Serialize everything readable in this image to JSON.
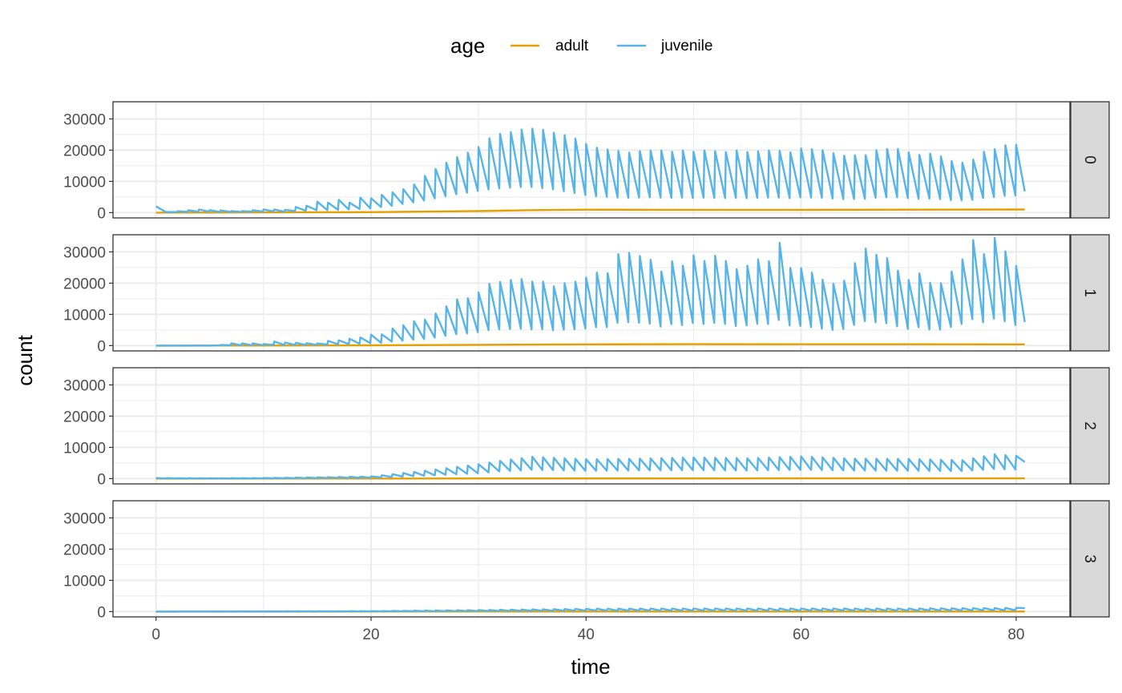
{
  "chart_data": {
    "type": "line",
    "title": "",
    "xlabel": "time",
    "ylabel": "count",
    "xlim": [
      -4,
      85
    ],
    "ylim": [
      -1700,
      35500
    ],
    "x_ticks": [
      0,
      20,
      40,
      60,
      80
    ],
    "x_tick_labels": [
      "0",
      "20",
      "40",
      "60",
      "80"
    ],
    "y_ticks": [
      0,
      10000,
      20000,
      30000
    ],
    "y_tick_labels": [
      "0",
      "10000",
      "20000",
      "30000"
    ],
    "grid": true,
    "legend": {
      "title": "age",
      "position": "top",
      "entries": [
        {
          "label": "adult",
          "color": "#E69F00"
        },
        {
          "label": "juvenile",
          "color": "#56B4E9"
        }
      ]
    },
    "facet_strip_position": "right",
    "panels": [
      {
        "label": "0",
        "series": [
          {
            "name": "adult",
            "color": "#E69F00",
            "t": [
              0,
              20,
              30,
              35,
              40,
              50,
              60,
              70,
              80.8
            ],
            "y": [
              0,
              150,
              500,
              800,
              950,
              900,
              900,
              950,
              1000
            ]
          },
          {
            "name": "juvenile",
            "color": "#56B4E9",
            "t": [
              0,
              0.5,
              1,
              4,
              5,
              6,
              7,
              8,
              9,
              10,
              11,
              12,
              13,
              14,
              15,
              16,
              17,
              18,
              19,
              20,
              21,
              22,
              23,
              24,
              25,
              26,
              27,
              28,
              29,
              30,
              31,
              32,
              33,
              34,
              35,
              36,
              37,
              38,
              39,
              40,
              41,
              42,
              43,
              44,
              45,
              46,
              47,
              48,
              49,
              50,
              51,
              52,
              53,
              54,
              55,
              56,
              57,
              58,
              59,
              60,
              61,
              62,
              63,
              64,
              65,
              66,
              67,
              68,
              69,
              70,
              71,
              72,
              73,
              74,
              75,
              76,
              77,
              78,
              79,
              80,
              80.8
            ],
            "peaks": [
              2000,
              1000,
              200,
              1000,
              800,
              700,
              500,
              500,
              800,
              1000,
              1000,
              900,
              1800,
              2200,
              3500,
              3200,
              4100,
              3200,
              4800,
              4600,
              5700,
              6500,
              7500,
              9000,
              11800,
              14000,
              16000,
              17800,
              19200,
              21000,
              23800,
              25200,
              25800,
              26600,
              26900,
              26500,
              25600,
              24800,
              23700,
              22000,
              20800,
              20200,
              19800,
              19200,
              19700,
              19900,
              19900,
              19500,
              19900,
              19500,
              19900,
              19700,
              19400,
              19900,
              19400,
              19600,
              19900,
              19800,
              19300,
              20500,
              20300,
              20000,
              19000,
              18200,
              18400,
              18400,
              20000,
              20400,
              20400,
              19300,
              18500,
              18900,
              18000,
              16500,
              16000,
              17000,
              19500,
              20300,
              21600,
              21700,
              21700
            ],
            "troughs": [
              1200,
              600,
              100,
              300,
              300,
              200,
              200,
              200,
              300,
              300,
              400,
              300,
              500,
              600,
              800,
              800,
              900,
              1000,
              1200,
              1400,
              1800,
              2200,
              2800,
              3300,
              3900,
              4600,
              5300,
              5900,
              6400,
              7000,
              7400,
              7800,
              8000,
              8200,
              8200,
              7800,
              7400,
              6800,
              6200,
              5600,
              5200,
              5000,
              4800,
              4700,
              4800,
              4900,
              4800,
              4700,
              4800,
              4700,
              4800,
              4700,
              4600,
              4700,
              4600,
              4700,
              4800,
              4800,
              4600,
              4900,
              4800,
              4700,
              4500,
              4300,
              4400,
              4400,
              4800,
              4900,
              4900,
              4600,
              4400,
              4500,
              4300,
              4000,
              3900,
              4100,
              4700,
              5000,
              5400,
              5500,
              6800
            ]
          }
        ]
      },
      {
        "label": "1",
        "series": [
          {
            "name": "adult",
            "color": "#E69F00",
            "t": [
              0,
              10,
              20,
              30,
              40,
              50,
              60,
              70,
              80.8
            ],
            "y": [
              0,
              20,
              100,
              250,
              400,
              450,
              420,
              420,
              400
            ]
          },
          {
            "name": "juvenile",
            "color": "#56B4E9",
            "t": [
              0,
              5,
              6,
              7,
              8,
              9,
              10,
              11,
              12,
              13,
              14,
              15,
              16,
              17,
              18,
              19,
              20,
              21,
              22,
              23,
              24,
              25,
              26,
              27,
              28,
              29,
              30,
              31,
              32,
              33,
              34,
              35,
              36,
              37,
              38,
              39,
              40,
              41,
              42,
              43,
              44,
              45,
              46,
              47,
              48,
              49,
              50,
              51,
              52,
              53,
              54,
              55,
              56,
              57,
              58,
              59,
              60,
              61,
              62,
              63,
              64,
              65,
              66,
              67,
              68,
              69,
              70,
              71,
              72,
              73,
              74,
              75,
              76,
              77,
              78,
              79,
              80,
              80.8
            ],
            "peaks": [
              0,
              0,
              200,
              700,
              700,
              700,
              500,
              1300,
              1000,
              900,
              800,
              700,
              1500,
              1700,
              2200,
              2600,
              3500,
              3600,
              5500,
              6500,
              7800,
              8300,
              10300,
              12600,
              14800,
              15200,
              17000,
              19800,
              20400,
              21000,
              21300,
              20500,
              20500,
              19000,
              20000,
              20500,
              21800,
              23400,
              23200,
              29300,
              29700,
              28700,
              27500,
              23700,
              27000,
              25600,
              28900,
              27100,
              28800,
              27100,
              24500,
              25600,
              27600,
              27000,
              32900,
              24900,
              24800,
              23400,
              21100,
              19800,
              20800,
              26400,
              31100,
              29100,
              28000,
              24000,
              21000,
              23100,
              20100,
              20000,
              23700,
              27600,
              33800,
              29300,
              34500,
              30200,
              25500,
              25500
            ],
            "troughs": [
              0,
              0,
              50,
              100,
              100,
              100,
              100,
              200,
              200,
              200,
              200,
              200,
              300,
              400,
              500,
              600,
              800,
              900,
              1300,
              1600,
              1900,
              2100,
              2600,
              3200,
              3700,
              3900,
              4300,
              5000,
              5200,
              5300,
              5400,
              5200,
              5200,
              4900,
              5100,
              5200,
              5500,
              5900,
              5900,
              7400,
              7500,
              7300,
              7000,
              6000,
              6900,
              6500,
              7300,
              6900,
              7300,
              6900,
              6200,
              6500,
              7000,
              6900,
              8300,
              6300,
              6300,
              5900,
              5400,
              5000,
              5300,
              6700,
              7900,
              7400,
              7100,
              6100,
              5300,
              5900,
              5100,
              5100,
              6000,
              7000,
              8600,
              7400,
              8700,
              7700,
              6500,
              7500
            ]
          }
        ]
      },
      {
        "label": "2",
        "series": [
          {
            "name": "adult",
            "color": "#E69F00",
            "t": [
              0,
              20,
              40,
              60,
              80.8
            ],
            "y": [
              0,
              20,
              50,
              60,
              60
            ]
          },
          {
            "name": "juvenile",
            "color": "#56B4E9",
            "t": [
              0,
              5,
              10,
              15,
              20,
              25,
              30,
              32,
              35,
              40,
              45,
              50,
              55,
              60,
              65,
              70,
              75,
              78,
              80,
              80.8
            ],
            "peaks": [
              200,
              100,
              200,
              400,
              700,
              2500,
              4600,
              5700,
              7000,
              6200,
              6400,
              6800,
              6500,
              7100,
              6400,
              6300,
              5900,
              7800,
              7300,
              5300
            ],
            "troughs": [
              50,
              50,
              50,
              150,
              250,
              900,
              1700,
              2300,
              2800,
              2500,
              2600,
              2700,
              2600,
              2800,
              2600,
              2500,
              2400,
              3100,
              2900,
              5300
            ]
          }
        ]
      },
      {
        "label": "3",
        "series": [
          {
            "name": "adult",
            "color": "#E69F00",
            "t": [
              0,
              40,
              80.8
            ],
            "y": [
              0,
              10,
              20
            ]
          },
          {
            "name": "juvenile",
            "color": "#56B4E9",
            "t": [
              0,
              20,
              30,
              40,
              50,
              60,
              70,
              80,
              80.8
            ],
            "peaks": [
              0,
              150,
              500,
              900,
              1000,
              1000,
              1000,
              1200,
              1100
            ],
            "troughs": [
              0,
              50,
              150,
              300,
              300,
              300,
              300,
              400,
              1100
            ]
          }
        ]
      }
    ]
  }
}
